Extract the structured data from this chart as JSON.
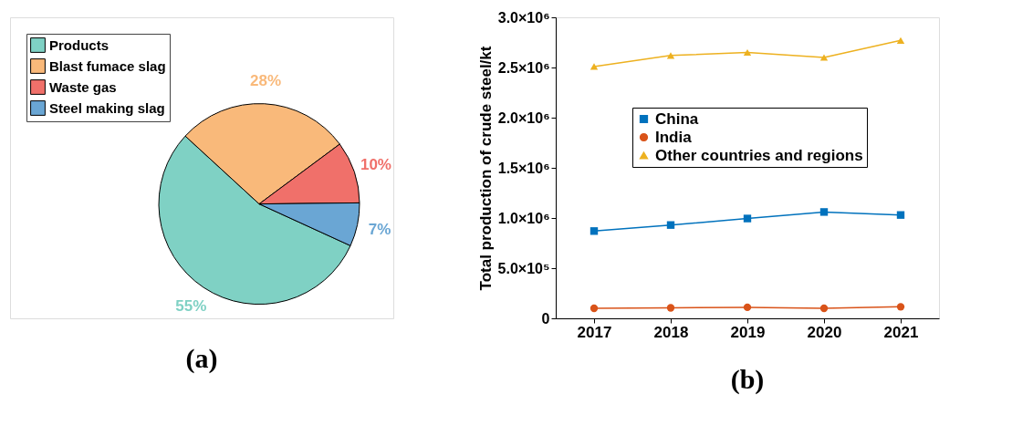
{
  "chart_data": [
    {
      "type": "pie",
      "title": "(a)",
      "categories": [
        "Products",
        "Blast fumace slag",
        "Waste gas",
        "Steel making slag"
      ],
      "values": [
        55,
        28,
        10,
        7
      ],
      "colors": [
        "#7fd1c4",
        "#f9b97a",
        "#f0706a",
        "#6aa6d4"
      ],
      "value_labels": [
        "55%",
        "28%",
        "10%",
        "7%"
      ],
      "legend": "top left"
    },
    {
      "type": "line",
      "title": "(b)",
      "ylabel": "Total production of crude steel/kt",
      "x": [
        2017,
        2018,
        2019,
        2020,
        2021
      ],
      "series": [
        {
          "name": "China",
          "color": "#0072bd",
          "marker": "square",
          "values": [
            870000,
            930000,
            995000,
            1060000,
            1030000
          ]
        },
        {
          "name": "India",
          "color": "#d95319",
          "marker": "circle",
          "values": [
            100000,
            105000,
            110000,
            100000,
            115000
          ]
        },
        {
          "name": "Other countries and regions",
          "color": "#edb120",
          "marker": "triangle",
          "values": [
            2510000,
            2620000,
            2650000,
            2600000,
            2770000
          ]
        }
      ],
      "xlim": [
        2016.5,
        2021.5
      ],
      "xticks": [
        2017,
        2018,
        2019,
        2020,
        2021
      ],
      "ylim": [
        0,
        3000000
      ],
      "yticks": [
        0,
        {
          "value": 500000,
          "label": "5.0×10⁵"
        },
        {
          "value": 1000000,
          "label": "1.0×10⁶"
        },
        {
          "value": 1500000,
          "label": "1.5×10⁶"
        },
        {
          "value": 2000000,
          "label": "2.0×10⁶"
        },
        {
          "value": 2500000,
          "label": "2.5×10⁶"
        },
        {
          "value": 3000000,
          "label": "3.0×10⁶"
        }
      ],
      "grid": false,
      "legend": "center",
      "line_style": "solid"
    }
  ]
}
